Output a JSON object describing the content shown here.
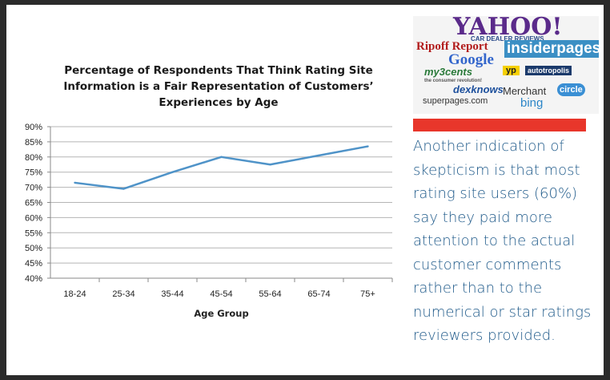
{
  "chart_data": {
    "type": "line",
    "title": "Percentage of Respondents That Think Rating Site\nInformation is a Fair Representation of Customers’\nExperiences by Age",
    "xlabel": "Age Group",
    "ylabel": "",
    "categories": [
      "18-24",
      "25-34",
      "35-44",
      "45-54",
      "55-64",
      "65-74",
      "75+"
    ],
    "series": [
      {
        "values": [
          71.5,
          69.5,
          75.0,
          80.0,
          77.5,
          80.5,
          83.5
        ]
      }
    ],
    "ylim": [
      40,
      90
    ],
    "ytick_labels": [
      "40%",
      "45%",
      "50%",
      "55%",
      "60%",
      "65%",
      "70%",
      "75%",
      "80%",
      "85%",
      "90%"
    ],
    "grid": true,
    "legend": "none",
    "line_color": "#4f93c8"
  },
  "logos": {
    "yahoo": "YAHOO!",
    "car_dealer_reviews": "CAR DEALER REVIEWS",
    "ripoff_report": "Ripoff Report",
    "insider_pages": "insiderpages",
    "google": "Google",
    "my_3_cents": "my3cents",
    "my_3_cents_tagline": "the consumer revolution!",
    "yp": "yp",
    "autotropolis": "autotropolis",
    "dexknows": "dexknows",
    "merchant": "Merchant",
    "circle": "circle",
    "superpages": "superpages.com",
    "bing": "bing"
  },
  "side_text": "Another indication of skepticism is that most rating site users (60%) say they paid more attention to the actual customer comments rather than to the numerical or star ratings reviewers provided.",
  "colors": {
    "accent_red": "#e8362b",
    "text_blue": "#1f5a8a",
    "frame": "#2b2b2b"
  }
}
